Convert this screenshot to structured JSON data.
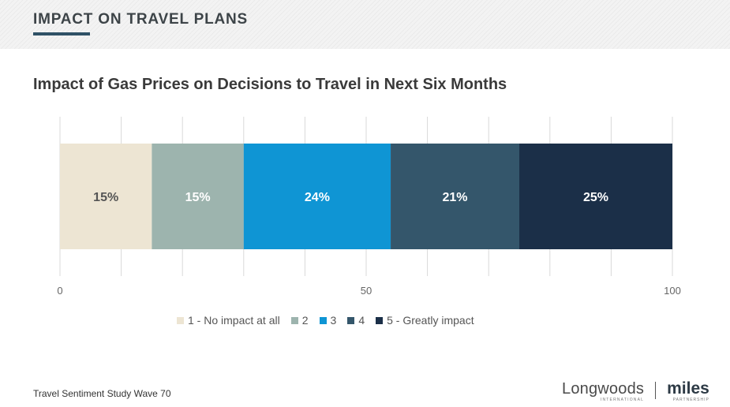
{
  "header": {
    "section_title": "IMPACT ON TRAVEL PLANS"
  },
  "chart_data": {
    "type": "bar",
    "orientation": "horizontal-stacked",
    "title": "Impact of Gas Prices on Decisions to Travel in Next Six Months",
    "xlim": [
      0,
      100
    ],
    "x_ticks": [
      0,
      50,
      100
    ],
    "grid": true,
    "legend_position": "bottom",
    "series": [
      {
        "name": "1 - No impact at all",
        "value": 15,
        "label": "15%",
        "color": "#ede5d3",
        "label_color": "#555555"
      },
      {
        "name": "2",
        "value": 15,
        "label": "15%",
        "color": "#9db4ae",
        "label_color": "#ffffff"
      },
      {
        "name": "3",
        "value": 24,
        "label": "24%",
        "color": "#0f95d4",
        "label_color": "#ffffff"
      },
      {
        "name": "4",
        "value": 21,
        "label": "21%",
        "color": "#34566b",
        "label_color": "#ffffff"
      },
      {
        "name": "5 - Greatly impact",
        "value": 25,
        "label": "25%",
        "color": "#1b2f48",
        "label_color": "#ffffff"
      }
    ]
  },
  "footer": {
    "source": "Travel Sentiment Study Wave 70",
    "logo_longwoods": "Longwoods",
    "logo_longwoods_sub": "INTERNATIONAL",
    "logo_miles": "miles",
    "logo_miles_sub": "PARTNERSHIP"
  }
}
